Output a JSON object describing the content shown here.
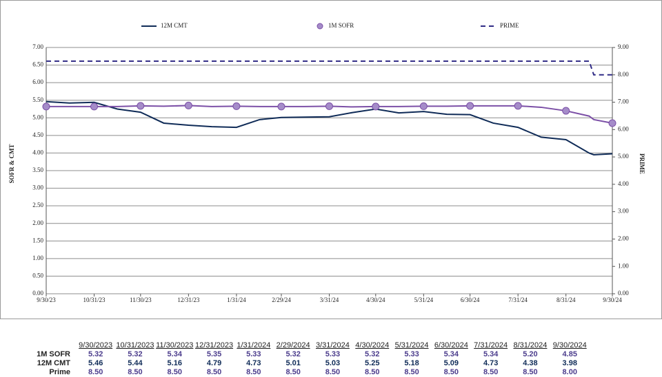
{
  "chart_data": {
    "type": "line",
    "x": [
      "9/30/23",
      "10/15/23",
      "10/31/23",
      "11/15/23",
      "11/30/23",
      "12/15/23",
      "12/31/23",
      "1/15/24",
      "1/31/24",
      "2/15/24",
      "2/29/24",
      "3/15/24",
      "3/31/24",
      "4/15/24",
      "4/30/24",
      "5/15/24",
      "5/31/24",
      "6/15/24",
      "6/30/24",
      "7/15/24",
      "7/31/24",
      "8/15/24",
      "8/31/24",
      "9/15/24",
      "9/18/24",
      "9/30/24"
    ],
    "xlim": [
      "9/30/23",
      "9/30/24"
    ],
    "xticks": [
      "9/30/23",
      "10/31/23",
      "11/30/23",
      "12/31/23",
      "1/31/24",
      "2/29/24",
      "3/31/24",
      "4/30/24",
      "5/31/24",
      "6/30/24",
      "7/31/24",
      "8/31/24",
      "9/30/24"
    ],
    "ylim": [
      0,
      7
    ],
    "yticks": [
      {
        "value": 0,
        "label": "0.00"
      },
      {
        "value": 0.5,
        "label": "0.50"
      },
      {
        "value": 1,
        "label": "1.00"
      },
      {
        "value": 1.5,
        "label": "1.50"
      },
      {
        "value": 2,
        "label": "2.00"
      },
      {
        "value": 2.5,
        "label": "2.50"
      },
      {
        "value": 3,
        "label": "3.00"
      },
      {
        "value": 3.5,
        "label": "3.50"
      },
      {
        "value": 4,
        "label": "4.00"
      },
      {
        "value": 4.5,
        "label": "4.50"
      },
      {
        "value": 5,
        "label": "5.00"
      },
      {
        "value": 5.5,
        "label": "5.50"
      },
      {
        "value": 6,
        "label": "6.00"
      },
      {
        "value": 6.5,
        "label": "6.50"
      },
      {
        "value": 7,
        "label": "7.00"
      }
    ],
    "y2lim": [
      0,
      9
    ],
    "y2ticks": [
      {
        "value": 0,
        "label": "0.00"
      },
      {
        "value": 1,
        "label": "1.00"
      },
      {
        "value": 2,
        "label": "2.00"
      },
      {
        "value": 3,
        "label": "3.00"
      },
      {
        "value": 4,
        "label": "4.00"
      },
      {
        "value": 5,
        "label": "5.00"
      },
      {
        "value": 6,
        "label": "6.00"
      },
      {
        "value": 7,
        "label": "7.00"
      },
      {
        "value": 8,
        "label": "8.00"
      },
      {
        "value": 9,
        "label": "9.00"
      }
    ],
    "y_label": "SOFR & CMT",
    "y2_label": "PRIME",
    "grid": true,
    "legend": "top",
    "series": [
      {
        "name": "12M CMT",
        "color": "#0f2b57",
        "line_style": "solid",
        "values": [
          5.46,
          5.42,
          5.44,
          5.25,
          5.16,
          4.85,
          4.79,
          4.75,
          4.73,
          4.95,
          5.01,
          5.02,
          5.03,
          5.15,
          5.25,
          5.14,
          5.18,
          5.1,
          5.09,
          4.85,
          4.73,
          4.45,
          4.38,
          4.0,
          3.95,
          3.98
        ]
      },
      {
        "name": "1M SOFR",
        "color": "#7b4fa6",
        "line_style": "solid",
        "marker": "circle",
        "marker_color": "#a58cc9",
        "values": [
          5.32,
          5.32,
          5.32,
          5.32,
          5.34,
          5.33,
          5.35,
          5.32,
          5.33,
          5.32,
          5.32,
          5.32,
          5.33,
          5.31,
          5.32,
          5.32,
          5.33,
          5.33,
          5.34,
          5.34,
          5.34,
          5.3,
          5.2,
          5.05,
          4.95,
          4.85
        ]
      },
      {
        "name": "PRIME",
        "color": "#2f2a85",
        "line_style": "dashed",
        "axis": "y2",
        "values": [
          8.5,
          8.5,
          8.5,
          8.5,
          8.5,
          8.5,
          8.5,
          8.5,
          8.5,
          8.5,
          8.5,
          8.5,
          8.5,
          8.5,
          8.5,
          8.5,
          8.5,
          8.5,
          8.5,
          8.5,
          8.5,
          8.5,
          8.5,
          8.5,
          8.0,
          8.0
        ]
      }
    ]
  },
  "table": {
    "columns": [
      "9/30/2023",
      "10/31/2023",
      "11/30/2023",
      "12/31/2023",
      "1/31/2024",
      "2/29/2024",
      "3/31/2024",
      "4/30/2024",
      "5/31/2024",
      "6/30/2024",
      "7/31/2024",
      "8/31/2024",
      "9/30/2024"
    ],
    "rows": [
      {
        "label": "1M SOFR",
        "color": "#4b3c8c",
        "values": [
          "5.32",
          "5.32",
          "5.34",
          "5.35",
          "5.33",
          "5.32",
          "5.33",
          "5.32",
          "5.33",
          "5.34",
          "5.34",
          "5.20",
          "4.85"
        ]
      },
      {
        "label": "12M CMT",
        "color": "#0f2b57",
        "values": [
          "5.46",
          "5.44",
          "5.16",
          "4.79",
          "4.73",
          "5.01",
          "5.03",
          "5.25",
          "5.18",
          "5.09",
          "4.73",
          "4.38",
          "3.98"
        ]
      },
      {
        "label": "Prime",
        "color": "#4b3c8c",
        "values": [
          "8.50",
          "8.50",
          "8.50",
          "8.50",
          "8.50",
          "8.50",
          "8.50",
          "8.50",
          "8.50",
          "8.50",
          "8.50",
          "8.50",
          "8.00"
        ]
      }
    ]
  }
}
